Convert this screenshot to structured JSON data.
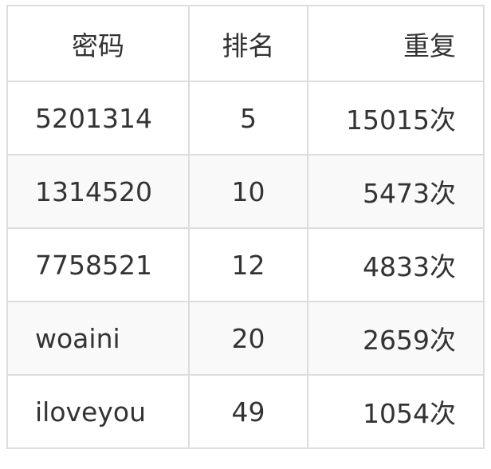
{
  "table": {
    "headers": [
      "密码",
      "排名",
      "重复"
    ],
    "rows": [
      [
        "5201314",
        "5",
        "15015次"
      ],
      [
        "1314520",
        "10",
        "5473次"
      ],
      [
        "7758521",
        "12",
        "4833次"
      ],
      [
        "woaini",
        "20",
        "2659次"
      ],
      [
        "iloveyou",
        "49",
        "1054次"
      ]
    ]
  }
}
